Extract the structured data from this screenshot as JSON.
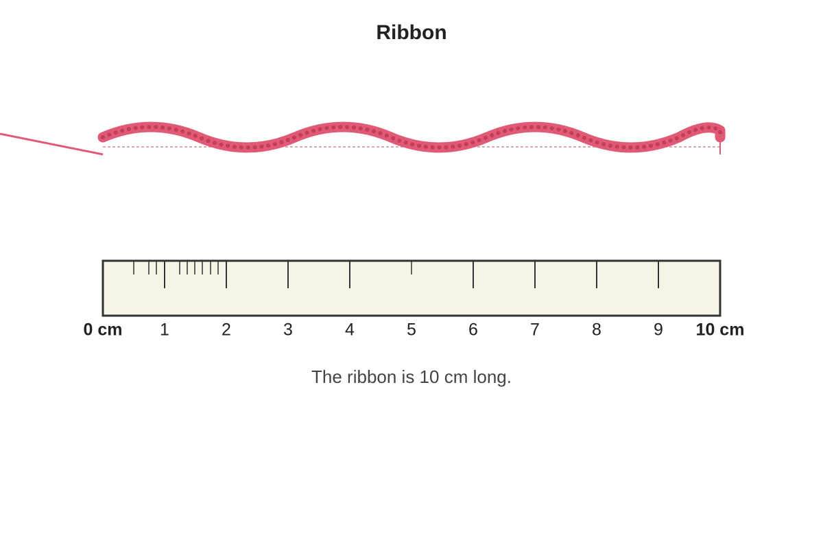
{
  "title": "Ribbon",
  "ruler": {
    "labels": [
      "0 cm",
      "1",
      "2",
      "3",
      "4",
      "5",
      "6",
      "7",
      "8",
      "9",
      "10 cm"
    ]
  },
  "caption": "The ribbon is 10 cm long."
}
